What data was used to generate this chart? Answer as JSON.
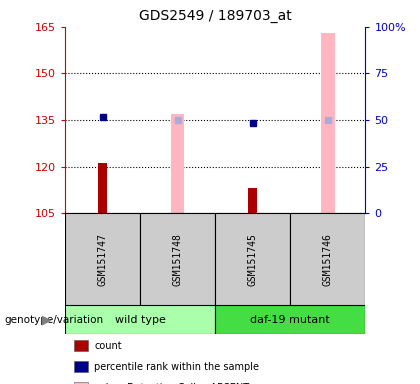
{
  "title": "GDS2549 / 189703_at",
  "samples": [
    "GSM151747",
    "GSM151748",
    "GSM151745",
    "GSM151746"
  ],
  "red_bar_values": [
    121,
    105,
    113,
    105
  ],
  "pink_bar_values": [
    105,
    137,
    105,
    163
  ],
  "blue_dot_y_left": [
    136,
    null,
    134,
    null
  ],
  "light_blue_dot_y_left": [
    null,
    135,
    null,
    135
  ],
  "ylim_left": [
    105,
    165
  ],
  "ylim_right": [
    0,
    100
  ],
  "yticks_left": [
    105,
    120,
    135,
    150,
    165
  ],
  "yticks_right": [
    0,
    25,
    50,
    75,
    100
  ],
  "ytick_labels_right": [
    "0",
    "25",
    "50",
    "75",
    "100%"
  ],
  "left_axis_color": "#CC0000",
  "right_axis_color": "#0000CC",
  "pink_bar_color": "#FFB6C1",
  "red_bar_color": "#AA0000",
  "blue_dot_color": "#00008B",
  "light_blue_dot_color": "#AAAADD",
  "sample_bg_color": "#CCCCCC",
  "wildtype_bg": "#AAFFAA",
  "mutant_bg": "#44DD44",
  "fig_width": 4.2,
  "fig_height": 3.84,
  "dpi": 100
}
